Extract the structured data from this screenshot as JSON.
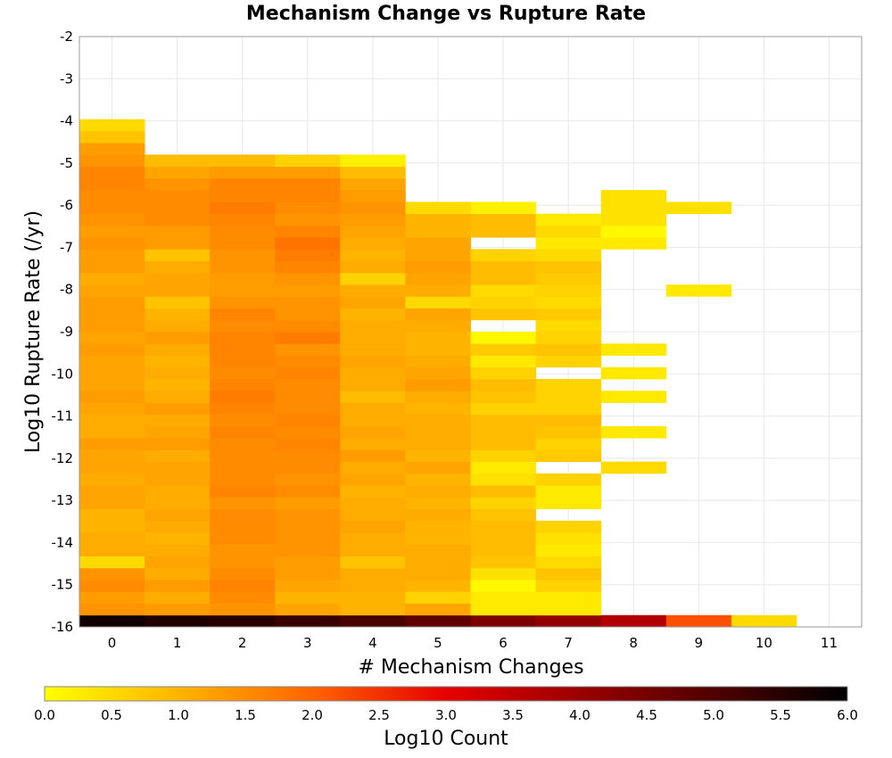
{
  "chart_data": {
    "type": "heatmap",
    "title": "Mechanism Change vs Rupture Rate",
    "xlabel": "# Mechanism Changes",
    "ylabel": "Log10 Rupture Rate (/yr)",
    "xlim": [
      -0.5,
      11.5
    ],
    "ylim": [
      -16,
      -2
    ],
    "x_ticks": [
      "0",
      "1",
      "2",
      "3",
      "4",
      "5",
      "6",
      "7",
      "8",
      "9",
      "10",
      "11"
    ],
    "y_ticks": [
      "-2",
      "-3",
      "-4",
      "-5",
      "-6",
      "-7",
      "-8",
      "-9",
      "-10",
      "-11",
      "-12",
      "-13",
      "-14",
      "-15",
      "-16"
    ],
    "grid": true,
    "colorbar": {
      "label": "Log10 Count",
      "range": [
        0,
        6
      ],
      "ticks": [
        "0.0",
        "0.5",
        "1.0",
        "1.5",
        "2.0",
        "2.5",
        "3.0",
        "3.5",
        "4.0",
        "4.5",
        "5.0",
        "5.5",
        "6.0"
      ],
      "stops": [
        {
          "v": 0.0,
          "color": "#ffff00"
        },
        {
          "v": 1.0,
          "color": "#ffb400"
        },
        {
          "v": 2.0,
          "color": "#ff6400"
        },
        {
          "v": 3.0,
          "color": "#e60000"
        },
        {
          "v": 4.0,
          "color": "#9b0000"
        },
        {
          "v": 5.0,
          "color": "#500000"
        },
        {
          "v": 6.0,
          "color": "#000000"
        }
      ]
    },
    "bin_y_start": -16.0,
    "bin_y_step": 0.28,
    "columns": [
      {
        "x": 0,
        "values": [
          5.8,
          1.4,
          1.3,
          1.5,
          1.4,
          0.5,
          1.1,
          1.1,
          1.0,
          1.0,
          1.2,
          1.2,
          1.1,
          1.2,
          1.2,
          1.3,
          1.1,
          1.1,
          1.2,
          1.3,
          1.2,
          1.2,
          1.2,
          1.3,
          1.2,
          1.3,
          1.3,
          1.3,
          1.2,
          1.1,
          1.3,
          1.3,
          1.4,
          1.3,
          1.4,
          1.5,
          1.5,
          1.6,
          1.6,
          1.4,
          1.3,
          0.8,
          0.5
        ]
      },
      {
        "x": 1,
        "values": [
          5.6,
          1.3,
          1.1,
          1.3,
          1.1,
          1.2,
          1.1,
          1.0,
          1.1,
          1.2,
          1.1,
          1.1,
          1.2,
          1.2,
          1.1,
          1.3,
          1.2,
          1.1,
          1.3,
          1.1,
          1.0,
          1.1,
          1.0,
          1.1,
          1.3,
          1.1,
          1.0,
          0.8,
          1.2,
          1.2,
          1.1,
          0.8,
          1.3,
          1.3,
          1.5,
          1.5,
          1.5,
          1.4,
          1.2,
          0.9
        ]
      },
      {
        "x": 2,
        "values": [
          5.5,
          1.4,
          1.5,
          1.6,
          1.5,
          1.4,
          1.4,
          1.5,
          1.5,
          1.5,
          1.4,
          1.6,
          1.5,
          1.5,
          1.5,
          1.5,
          1.6,
          1.5,
          1.6,
          1.7,
          1.6,
          1.5,
          1.6,
          1.6,
          1.6,
          1.5,
          1.6,
          1.4,
          1.3,
          1.3,
          1.4,
          1.4,
          1.5,
          1.5,
          1.6,
          1.7,
          1.6,
          1.6,
          1.3,
          0.9
        ]
      },
      {
        "x": 3,
        "values": [
          5.3,
          1.2,
          1.0,
          1.2,
          1.3,
          1.3,
          1.4,
          1.4,
          1.4,
          1.4,
          1.3,
          1.5,
          1.4,
          1.5,
          1.5,
          1.6,
          1.5,
          1.6,
          1.5,
          1.5,
          1.5,
          1.6,
          1.5,
          1.4,
          1.7,
          1.5,
          1.4,
          1.4,
          1.3,
          1.4,
          1.6,
          1.7,
          1.8,
          1.6,
          1.4,
          1.5,
          1.6,
          1.6,
          1.3,
          0.6
        ]
      },
      {
        "x": 4,
        "values": [
          5.1,
          1.0,
          1.0,
          1.1,
          1.1,
          0.8,
          1.1,
          1.1,
          1.2,
          1.1,
          1.1,
          1.0,
          1.2,
          1.1,
          1.3,
          1.1,
          1.2,
          1.1,
          1.1,
          0.9,
          1.1,
          1.1,
          1.2,
          1.1,
          1.1,
          1.1,
          1.0,
          1.2,
          1.1,
          0.6,
          1.1,
          1.0,
          1.1,
          1.2,
          1.3,
          1.4,
          1.3,
          1.2,
          0.9,
          0.2
        ]
      },
      {
        "x": 5,
        "values": [
          4.8,
          1.2,
          0.6,
          1.0,
          1.1,
          1.1,
          1.1,
          1.0,
          1.0,
          1.1,
          1.0,
          1.1,
          1.0,
          1.2,
          1.0,
          1.1,
          1.1,
          1.1,
          1.0,
          1.1,
          1.3,
          1.2,
          1.1,
          1.0,
          1.0,
          1.1,
          1.2,
          0.5,
          1.1,
          1.2,
          1.3,
          1.2,
          1.2,
          1.0,
          1.0,
          0.5
        ]
      },
      {
        "x": 6,
        "values": [
          4.4,
          0.3,
          0.3,
          0.1,
          0.4,
          0.8,
          0.9,
          0.9,
          0.9,
          0.8,
          0.6,
          0.9,
          0.4,
          0.3,
          0.6,
          0.9,
          0.9,
          0.9,
          0.6,
          0.8,
          0.9,
          0.6,
          0.3,
          0.7,
          0.1,
          null,
          0.8,
          0.6,
          0.5,
          0.9,
          0.9,
          0.6,
          null,
          0.9,
          0.9,
          0.2
        ]
      },
      {
        "x": 7,
        "values": [
          4.1,
          0.3,
          0.3,
          0.6,
          0.8,
          0.5,
          0.3,
          0.4,
          0.6,
          null,
          0.3,
          0.3,
          0.6,
          null,
          0.7,
          0.6,
          0.8,
          0.9,
          0.6,
          0.6,
          0.6,
          null,
          0.6,
          0.8,
          0.6,
          0.5,
          0.7,
          0.5,
          0.6,
          0.7,
          0.8,
          0.5,
          0.3,
          0.5,
          0.3
        ]
      },
      {
        "x": 8,
        "values": [
          3.7,
          null,
          null,
          null,
          null,
          null,
          null,
          null,
          null,
          null,
          null,
          null,
          null,
          0.5,
          null,
          null,
          0.3,
          null,
          null,
          0.3,
          null,
          0.3,
          null,
          0.3,
          null,
          null,
          null,
          null,
          null,
          null,
          null,
          null,
          0.3,
          0.1,
          0.4,
          0.4,
          0.4
        ]
      },
      {
        "x": 9,
        "values": [
          2.2,
          null,
          null,
          null,
          null,
          null,
          null,
          null,
          null,
          null,
          null,
          null,
          null,
          null,
          null,
          null,
          null,
          null,
          null,
          null,
          null,
          null,
          null,
          null,
          null,
          null,
          null,
          null,
          0.3,
          null,
          null,
          null,
          null,
          null,
          null,
          0.4
        ]
      },
      {
        "x": 10,
        "values": [
          0.5
        ]
      }
    ]
  }
}
